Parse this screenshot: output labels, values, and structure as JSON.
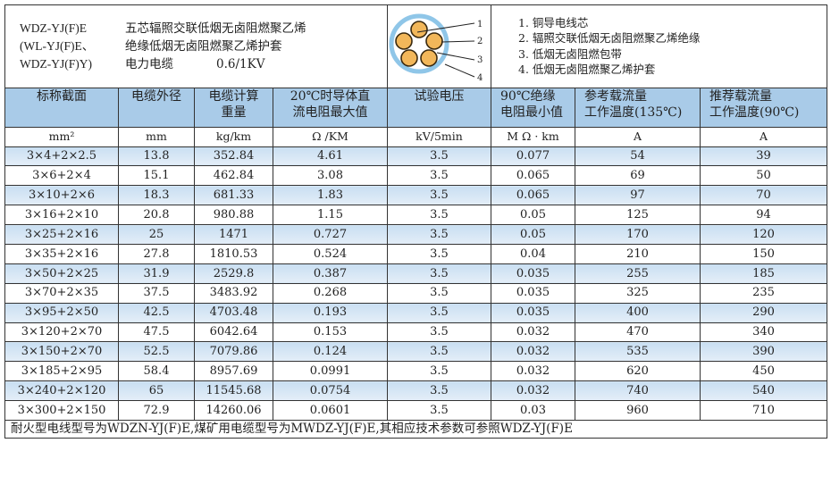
{
  "header": {
    "model_codes": [
      "WDZ-YJ(F)E",
      "(WL-YJ(F)E、",
      "WDZ-YJ(F)Y)"
    ],
    "description": [
      "五芯辐照交联低烟无卤阻燃聚乙烯",
      "绝缘低烟无卤阻燃聚乙烯护套",
      "电力电缆",
      "0.6/1KV"
    ],
    "diagram_labels": [
      "1",
      "2",
      "3",
      "4"
    ],
    "legend": [
      "1. 铜导电线芯",
      "2. 辐照交联低烟无卤阻燃聚乙烯绝缘",
      "3. 低烟无卤阻燃包带",
      "4. 低烟无卤阻燃聚乙烯护套"
    ],
    "colors": {
      "sheath": "#8fc6e8",
      "conductor": "#f2b75a",
      "header_bg": "#a9cbe8"
    }
  },
  "columns": [
    {
      "title": [
        "标称截面"
      ],
      "unit": "mm²"
    },
    {
      "title": [
        "电缆外径"
      ],
      "unit": "mm"
    },
    {
      "title": [
        "电缆计算",
        "重量"
      ],
      "unit": "kg/km"
    },
    {
      "title": [
        "20℃时导体直",
        "流电阻最大值"
      ],
      "unit": "Ω /KM"
    },
    {
      "title": [
        "试验电压"
      ],
      "unit": "kV/5min"
    },
    {
      "title": [
        "90℃绝缘",
        "电阻最小值"
      ],
      "unit": "M Ω · km"
    },
    {
      "title": [
        "参考载流量",
        "工作温度(135℃)"
      ],
      "unit": "A"
    },
    {
      "title": [
        "推荐载流量",
        "工作温度(90℃)"
      ],
      "unit": "A"
    }
  ],
  "rows": [
    [
      "3×4+2×2.5",
      "13.8",
      "352.84",
      "4.61",
      "3.5",
      "0.077",
      "54",
      "39"
    ],
    [
      "3×6+2×4",
      "15.1",
      "462.84",
      "3.08",
      "3.5",
      "0.065",
      "69",
      "50"
    ],
    [
      "3×10+2×6",
      "18.3",
      "681.33",
      "1.83",
      "3.5",
      "0.065",
      "97",
      "70"
    ],
    [
      "3×16+2×10",
      "20.8",
      "980.88",
      "1.15",
      "3.5",
      "0.05",
      "125",
      "94"
    ],
    [
      "3×25+2×16",
      "25",
      "1471",
      "0.727",
      "3.5",
      "0.05",
      "170",
      "120"
    ],
    [
      "3×35+2×16",
      "27.8",
      "1810.53",
      "0.524",
      "3.5",
      "0.04",
      "210",
      "150"
    ],
    [
      "3×50+2×25",
      "31.9",
      "2529.8",
      "0.387",
      "3.5",
      "0.035",
      "255",
      "185"
    ],
    [
      "3×70+2×35",
      "37.5",
      "3483.92",
      "0.268",
      "3.5",
      "0.035",
      "325",
      "235"
    ],
    [
      "3×95+2×50",
      "42.5",
      "4703.48",
      "0.193",
      "3.5",
      "0.035",
      "400",
      "290"
    ],
    [
      "3×120+2×70",
      "47.5",
      "6042.64",
      "0.153",
      "3.5",
      "0.032",
      "470",
      "340"
    ],
    [
      "3×150+2×70",
      "52.5",
      "7079.86",
      "0.124",
      "3.5",
      "0.032",
      "535",
      "390"
    ],
    [
      "3×185+2×95",
      "58.4",
      "8957.69",
      "0.0991",
      "3.5",
      "0.032",
      "620",
      "450"
    ],
    [
      "3×240+2×120",
      "65",
      "11545.68",
      "0.0754",
      "3.5",
      "0.032",
      "740",
      "540"
    ],
    [
      "3×300+2×150",
      "72.9",
      "14260.06",
      "0.0601",
      "3.5",
      "0.03",
      "960",
      "710"
    ]
  ],
  "footnote": "耐火型电线型号为WDZN-YJ(F)E,煤矿用电缆型号为MWDZ-YJ(F)E,其相应技术参数可参照WDZ-YJ(F)E"
}
